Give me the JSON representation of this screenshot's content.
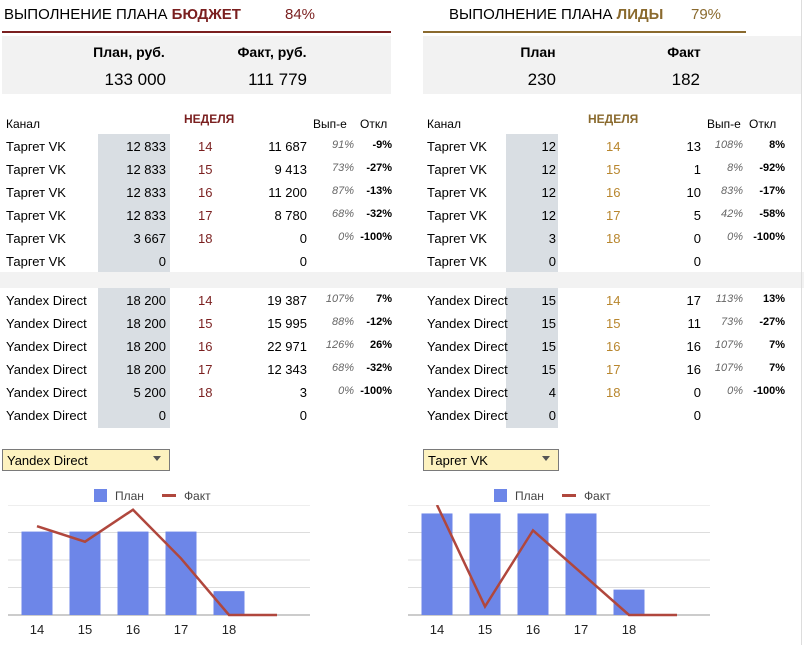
{
  "budget": {
    "title_prefix": "ВЫПОЛНЕНИЕ ПЛАНА ",
    "title_accent": "БЮДЖЕТ",
    "percent": "84%",
    "accent_color": "#7a1f1f",
    "plan_label": "План, руб.",
    "fact_label": "Факт, руб.",
    "plan_value": "133 000",
    "fact_value": "111 779",
    "col_channel": "Канал",
    "col_week": "НЕДЕЛЯ",
    "col_pct": "Вып-е",
    "col_dev": "Откл",
    "vk_rows": [
      {
        "channel": "Таргет VK",
        "plan": "12 833",
        "week": "14",
        "fact": "11 687",
        "pct": "91%",
        "dev": "-9%"
      },
      {
        "channel": "Таргет VK",
        "plan": "12 833",
        "week": "15",
        "fact": "9 413",
        "pct": "73%",
        "dev": "-27%"
      },
      {
        "channel": "Таргет VK",
        "plan": "12 833",
        "week": "16",
        "fact": "11 200",
        "pct": "87%",
        "dev": "-13%"
      },
      {
        "channel": "Таргет VK",
        "plan": "12 833",
        "week": "17",
        "fact": "8 780",
        "pct": "68%",
        "dev": "-32%"
      },
      {
        "channel": "Таргет VK",
        "plan": "3 667",
        "week": "18",
        "fact": "0",
        "pct": "0%",
        "dev": "-100%"
      },
      {
        "channel": "Таргет VK",
        "plan": "0",
        "week": "",
        "fact": "0",
        "pct": "",
        "dev": ""
      }
    ],
    "yd_rows": [
      {
        "channel": "Yandex Direct",
        "plan": "18 200",
        "week": "14",
        "fact": "19 387",
        "pct": "107%",
        "dev": "7%"
      },
      {
        "channel": "Yandex Direct",
        "plan": "18 200",
        "week": "15",
        "fact": "15 995",
        "pct": "88%",
        "dev": "-12%"
      },
      {
        "channel": "Yandex Direct",
        "plan": "18 200",
        "week": "16",
        "fact": "22 971",
        "pct": "126%",
        "dev": "26%"
      },
      {
        "channel": "Yandex Direct",
        "plan": "18 200",
        "week": "17",
        "fact": "12 343",
        "pct": "68%",
        "dev": "-32%"
      },
      {
        "channel": "Yandex Direct",
        "plan": "5 200",
        "week": "18",
        "fact": "3",
        "pct": "0%",
        "dev": "-100%"
      },
      {
        "channel": "Yandex Direct",
        "plan": "0",
        "week": "",
        "fact": "0",
        "pct": "",
        "dev": ""
      }
    ],
    "selector": "Yandex Direct"
  },
  "leads": {
    "title_prefix": "ВЫПОЛНЕНИЕ ПЛАНА ",
    "title_accent": "ЛИДЫ",
    "percent": "79%",
    "accent_color": "#8a6a2e",
    "plan_label": "План",
    "fact_label": "Факт",
    "plan_value": "230",
    "fact_value": "182",
    "col_channel": "Канал",
    "col_week": "НЕДЕЛЯ",
    "col_pct": "Вып-е",
    "col_dev": "Откл",
    "vk_rows": [
      {
        "channel": "Таргет VK",
        "plan": "12",
        "week": "14",
        "fact": "13",
        "pct": "108%",
        "dev": "8%"
      },
      {
        "channel": "Таргет VK",
        "plan": "12",
        "week": "15",
        "fact": "1",
        "pct": "8%",
        "dev": "-92%"
      },
      {
        "channel": "Таргет VK",
        "plan": "12",
        "week": "16",
        "fact": "10",
        "pct": "83%",
        "dev": "-17%"
      },
      {
        "channel": "Таргет VK",
        "plan": "12",
        "week": "17",
        "fact": "5",
        "pct": "42%",
        "dev": "-58%"
      },
      {
        "channel": "Таргет VK",
        "plan": "3",
        "week": "18",
        "fact": "0",
        "pct": "0%",
        "dev": "-100%"
      },
      {
        "channel": "Таргет VK",
        "plan": "0",
        "week": "",
        "fact": "0",
        "pct": "",
        "dev": ""
      }
    ],
    "yd_rows": [
      {
        "channel": "Yandex Direct",
        "plan": "15",
        "week": "14",
        "fact": "17",
        "pct": "113%",
        "dev": "13%"
      },
      {
        "channel": "Yandex Direct",
        "plan": "15",
        "week": "15",
        "fact": "11",
        "pct": "73%",
        "dev": "-27%"
      },
      {
        "channel": "Yandex Direct",
        "plan": "15",
        "week": "16",
        "fact": "16",
        "pct": "107%",
        "dev": "7%"
      },
      {
        "channel": "Yandex Direct",
        "plan": "15",
        "week": "17",
        "fact": "16",
        "pct": "107%",
        "dev": "7%"
      },
      {
        "channel": "Yandex Direct",
        "plan": "4",
        "week": "18",
        "fact": "0",
        "pct": "0%",
        "dev": "-100%"
      },
      {
        "channel": "Yandex Direct",
        "plan": "0",
        "week": "",
        "fact": "0",
        "pct": "",
        "dev": ""
      }
    ],
    "selector": "Таргет VK"
  },
  "chart_data": [
    {
      "type": "bar",
      "categories": [
        "14",
        "15",
        "16",
        "17",
        "18"
      ],
      "series": [
        {
          "name": "План",
          "kind": "bar",
          "color": "#6d86e8",
          "values": [
            18200,
            18200,
            18200,
            18200,
            5200
          ]
        },
        {
          "name": "Факт",
          "kind": "line",
          "color": "#b0473d",
          "values": [
            19387,
            15995,
            22971,
            12343,
            3
          ]
        }
      ],
      "ylim": [
        0,
        24000
      ],
      "grid": true,
      "legend": "top"
    },
    {
      "type": "bar",
      "categories": [
        "14",
        "15",
        "16",
        "17",
        "18"
      ],
      "series": [
        {
          "name": "План",
          "kind": "bar",
          "color": "#6d86e8",
          "values": [
            12,
            12,
            12,
            12,
            3
          ]
        },
        {
          "name": "Факт",
          "kind": "line",
          "color": "#b0473d",
          "values": [
            13,
            1,
            10,
            5,
            0
          ]
        }
      ],
      "ylim": [
        0,
        13
      ],
      "grid": true,
      "legend": "top"
    }
  ]
}
